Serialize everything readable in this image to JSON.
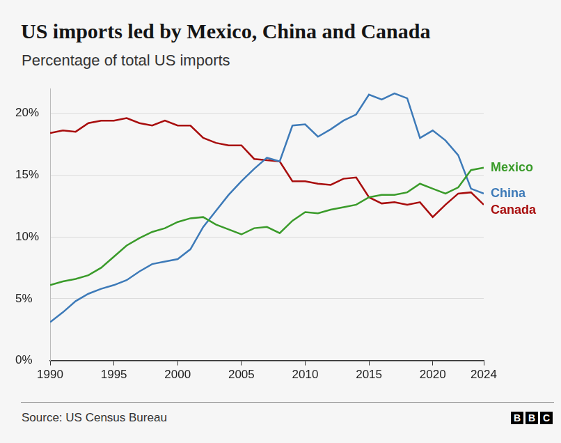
{
  "chart_data": {
    "type": "line",
    "title": "US imports led by Mexico, China and Canada",
    "subtitle": "Percentage of total US imports",
    "source": "Source: US Census Bureau",
    "logo": "BBC",
    "x": [
      1990,
      1991,
      1992,
      1993,
      1994,
      1995,
      1996,
      1997,
      1998,
      1999,
      2000,
      2001,
      2002,
      2003,
      2004,
      2005,
      2006,
      2007,
      2008,
      2009,
      2010,
      2011,
      2012,
      2013,
      2014,
      2015,
      2016,
      2017,
      2018,
      2019,
      2020,
      2021,
      2022,
      2023,
      2024
    ],
    "series": [
      {
        "name": "Mexico",
        "color": "#3a9b2a",
        "values": [
          6.1,
          6.4,
          6.6,
          6.9,
          7.5,
          8.4,
          9.3,
          9.9,
          10.4,
          10.7,
          11.2,
          11.5,
          11.6,
          11.0,
          10.6,
          10.2,
          10.7,
          10.8,
          10.3,
          11.3,
          12.0,
          11.9,
          12.2,
          12.4,
          12.6,
          13.2,
          13.4,
          13.4,
          13.6,
          14.3,
          13.9,
          13.5,
          14.0,
          15.4,
          15.6
        ]
      },
      {
        "name": "China",
        "color": "#3d7ab8",
        "values": [
          3.1,
          3.9,
          4.8,
          5.4,
          5.8,
          6.1,
          6.5,
          7.2,
          7.8,
          8.0,
          8.2,
          9.0,
          10.8,
          12.1,
          13.4,
          14.5,
          15.5,
          16.4,
          16.1,
          19.0,
          19.1,
          18.1,
          18.7,
          19.4,
          19.9,
          21.5,
          21.1,
          21.6,
          21.2,
          18.0,
          18.6,
          17.8,
          16.6,
          13.9,
          13.5
        ]
      },
      {
        "name": "Canada",
        "color": "#a80d0d",
        "values": [
          18.4,
          18.6,
          18.5,
          19.2,
          19.4,
          19.4,
          19.6,
          19.2,
          19.0,
          19.4,
          19.0,
          19.0,
          18.0,
          17.6,
          17.4,
          17.4,
          16.3,
          16.2,
          16.1,
          14.5,
          14.5,
          14.3,
          14.2,
          14.7,
          14.8,
          13.2,
          12.7,
          12.8,
          12.6,
          12.8,
          11.6,
          12.6,
          13.5,
          13.6,
          12.6
        ]
      }
    ],
    "xlim": [
      1990,
      2024
    ],
    "xticks": [
      1990,
      1995,
      2000,
      2005,
      2010,
      2015,
      2020,
      2024
    ],
    "ylim": [
      0,
      22
    ],
    "yticks": [
      {
        "value": 0,
        "label": "0%"
      },
      {
        "value": 5,
        "label": "5%"
      },
      {
        "value": 10,
        "label": "10%"
      },
      {
        "value": 15,
        "label": "15%"
      },
      {
        "value": 20,
        "label": "20%"
      }
    ],
    "grid": true
  }
}
